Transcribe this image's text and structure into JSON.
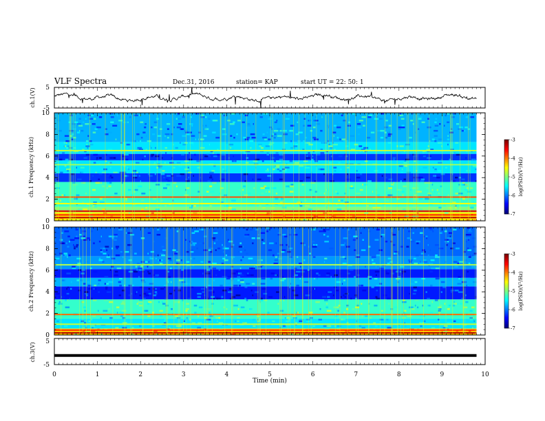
{
  "header": {
    "title": "VLF Spectra",
    "date": "Dec.31, 2016",
    "station": "station= KAP",
    "start": "start  UT  =   22: 50: 1"
  },
  "chart_data": [
    {
      "type": "line",
      "name": "ch1-waveform",
      "ylabel": "ch.1(V)",
      "ylim": [
        -5,
        5
      ],
      "yticks": [
        "5",
        "-5"
      ],
      "xlim": [
        0,
        10
      ],
      "x_end": 9.8,
      "baseline": 0,
      "amplitude": 2.2
    },
    {
      "type": "heatmap",
      "name": "ch1-spectrogram",
      "ylabel": "ch.1 Frequency (kHz)",
      "ylim": [
        0,
        10
      ],
      "yticks": [
        "0",
        "2",
        "4",
        "6",
        "8",
        "10"
      ],
      "xlim": [
        0,
        10
      ],
      "x_end": 9.8,
      "colorbar": {
        "label": "log(PSD)(V²/Hz)",
        "range": [
          -7,
          -3
        ],
        "ticks": [
          "-3",
          "-4",
          "-5",
          "-6",
          "-7"
        ]
      },
      "bands": [
        {
          "from": 0,
          "to": 0.8,
          "level": -4.4
        },
        {
          "from": 0.8,
          "to": 1.3,
          "level": -5.0
        },
        {
          "from": 1.3,
          "to": 3.6,
          "level": -5.3
        },
        {
          "from": 3.6,
          "to": 4.4,
          "level": -6.3
        },
        {
          "from": 4.4,
          "to": 5.6,
          "level": -5.6
        },
        {
          "from": 5.6,
          "to": 6.2,
          "level": -6.3
        },
        {
          "from": 6.2,
          "to": 7.3,
          "level": -5.6
        },
        {
          "from": 7.3,
          "to": 10,
          "level": -5.8
        }
      ],
      "lines": [
        {
          "freq": 0.3,
          "level": -3.2
        },
        {
          "freq": 0.55,
          "level": -3.6
        },
        {
          "freq": 0.9,
          "level": -3.4
        },
        {
          "freq": 2.2,
          "level": -3.8
        },
        {
          "freq": 1.6,
          "level": -4.5
        },
        {
          "freq": 6.5,
          "level": -4.7
        },
        {
          "freq": 5.2,
          "level": -4.9
        }
      ]
    },
    {
      "type": "heatmap",
      "name": "ch2-spectrogram",
      "ylabel": "ch.2 Frequency (kHz)",
      "ylim": [
        0,
        10
      ],
      "yticks": [
        "0",
        "2",
        "4",
        "6",
        "8",
        "10"
      ],
      "xlim": [
        0,
        10
      ],
      "x_end": 9.8,
      "colorbar": {
        "label": "log(PSD)(V²/Hz)",
        "range": [
          -7,
          -3
        ],
        "ticks": [
          "-3",
          "-4",
          "-5",
          "-6",
          "-7"
        ]
      },
      "bands": [
        {
          "from": 0,
          "to": 0.6,
          "level": -4.3
        },
        {
          "from": 0.6,
          "to": 1.5,
          "level": -5.6
        },
        {
          "from": 1.5,
          "to": 3.3,
          "level": -5.3
        },
        {
          "from": 3.3,
          "to": 4.5,
          "level": -6.4
        },
        {
          "from": 4.5,
          "to": 5.3,
          "level": -5.8
        },
        {
          "from": 5.3,
          "to": 6.1,
          "level": -6.4
        },
        {
          "from": 6.1,
          "to": 7.3,
          "level": -5.9
        },
        {
          "from": 7.3,
          "to": 10,
          "level": -6.1
        }
      ],
      "lines": [
        {
          "freq": 0.2,
          "level": -3.2
        },
        {
          "freq": 0.45,
          "level": -3.7
        },
        {
          "freq": 1.9,
          "level": -3.9
        },
        {
          "freq": 1.0,
          "level": -4.7
        },
        {
          "freq": 6.5,
          "level": -4.8
        }
      ]
    },
    {
      "type": "line",
      "name": "ch3-waveform",
      "ylabel": "ch.3(V)",
      "ylim": [
        -5,
        5
      ],
      "yticks": [
        "5",
        "-5"
      ],
      "xlim": [
        0,
        10
      ],
      "x_end": 9.8,
      "baseline": -1.5,
      "amplitude": 0
    }
  ],
  "xaxis": {
    "label": "Time  (min)",
    "ticks": [
      "0",
      "1",
      "2",
      "3",
      "4",
      "5",
      "6",
      "7",
      "8",
      "9",
      "10"
    ]
  }
}
